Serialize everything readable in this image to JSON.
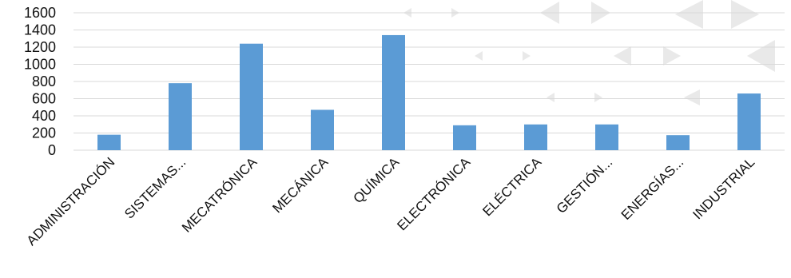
{
  "chart_data": {
    "type": "bar",
    "categories": [
      "ADMINISTRACIÓN",
      "SISTEMAS...",
      "MECATRÓNICA",
      "MECÁNICA",
      "QUÍMICA",
      "ELECTRÓNICA",
      "ELÉCTRICA",
      "GESTIÓN...",
      "ENERGÍAS...",
      "INDUSTRIAL"
    ],
    "values": [
      180,
      780,
      1240,
      470,
      1340,
      290,
      300,
      300,
      175,
      660
    ],
    "yticks": [
      "0",
      "200",
      "400",
      "600",
      "800",
      "1000",
      "1200",
      "1400",
      "1600"
    ],
    "ylim": [
      0,
      1600
    ],
    "grid": true,
    "bar_color": "#5B9BD5",
    "grid_color": "#d9d9d9"
  }
}
